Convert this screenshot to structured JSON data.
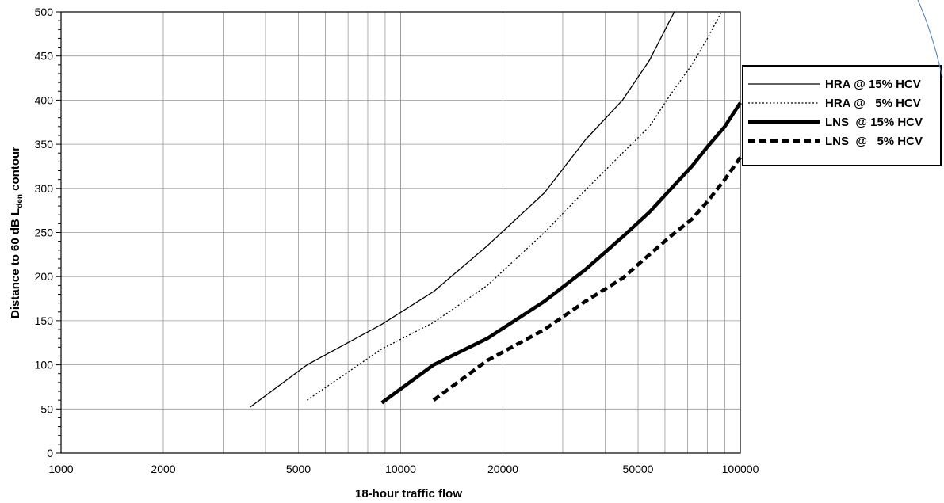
{
  "chart_data": {
    "type": "line",
    "x_scale": "log",
    "xlim": [
      1000,
      100000
    ],
    "ylim": [
      0,
      500
    ],
    "xlabel": "18-hour traffic flow",
    "ylabel_main": "Distance to 60 dB L",
    "ylabel_sub": "den",
    "ylabel_tail": " contour",
    "x_ticks": [
      1000,
      2000,
      5000,
      10000,
      20000,
      50000,
      100000
    ],
    "y_ticks": [
      0,
      50,
      100,
      150,
      200,
      250,
      300,
      350,
      400,
      450,
      500
    ],
    "grid": true,
    "legend_position": "right",
    "series": [
      {
        "name": "HRA @ 15% HCV",
        "style": "thin-solid",
        "x": [
          3600,
          5300,
          8800,
          12500,
          18000,
          26500,
          35000,
          45000,
          54000,
          62000,
          64000
        ],
        "y": [
          52,
          100,
          146,
          183,
          235,
          295,
          355,
          400,
          445,
          490,
          500
        ]
      },
      {
        "name": "HRA @   5% HCV",
        "style": "thin-dotted",
        "x": [
          5300,
          8800,
          12500,
          18000,
          26500,
          35000,
          45000,
          54000,
          62000,
          72000,
          80000,
          88000
        ],
        "y": [
          60,
          118,
          148,
          190,
          250,
          298,
          340,
          370,
          405,
          440,
          470,
          500
        ]
      },
      {
        "name": "LNS  @ 15% HCV",
        "style": "thick-solid",
        "x": [
          8800,
          12500,
          18000,
          26500,
          35000,
          45000,
          54000,
          62000,
          72000,
          80000,
          90000,
          100000
        ],
        "y": [
          57,
          100,
          130,
          172,
          208,
          245,
          273,
          298,
          325,
          347,
          370,
          397
        ]
      },
      {
        "name": "LNS  @   5% HCV",
        "style": "thick-dashed",
        "x": [
          12500,
          18000,
          26500,
          35000,
          45000,
          54000,
          62000,
          72000,
          80000,
          90000,
          100000
        ],
        "y": [
          60,
          105,
          140,
          172,
          198,
          225,
          245,
          265,
          285,
          310,
          335
        ]
      }
    ]
  }
}
